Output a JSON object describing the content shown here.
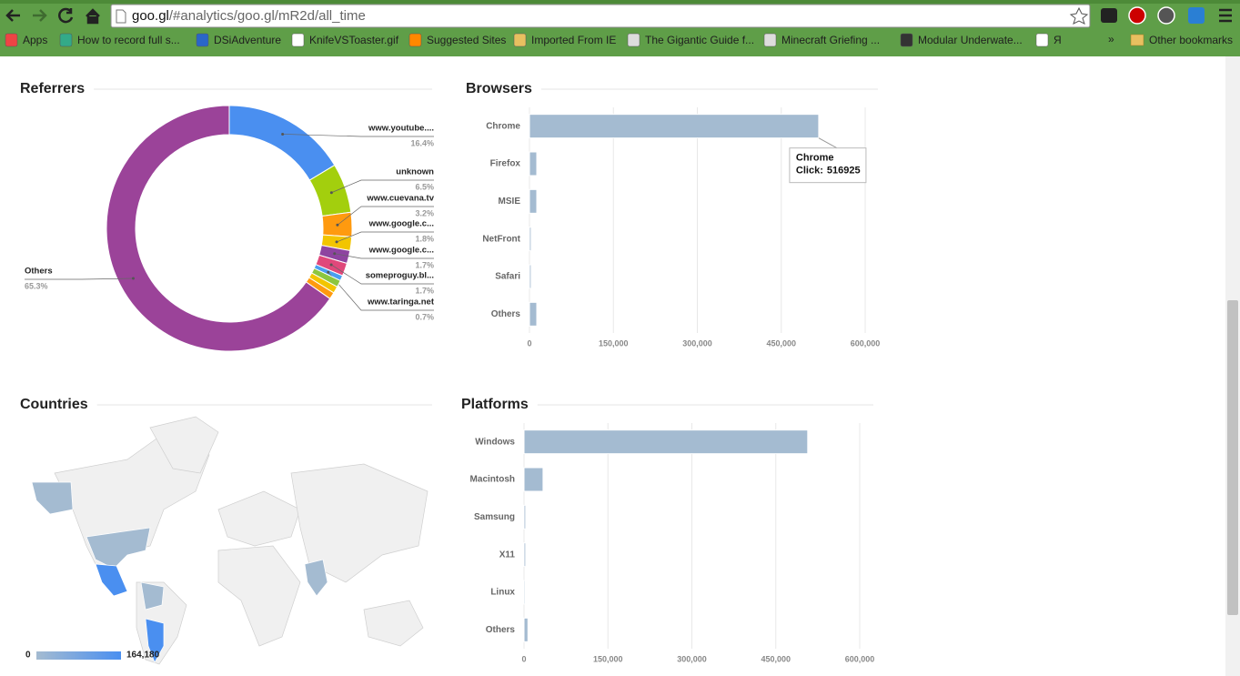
{
  "browser": {
    "url_host": "goo.gl",
    "url_path": "/#analytics/goo.gl/mR2d/all_time",
    "bookmarks": [
      "Apps",
      "How to record full s...",
      "DSiAdventure",
      "KnifeVSToaster.gif",
      "Suggested Sites",
      "Imported From IE",
      "The Gigantic Guide f...",
      "Minecraft Griefing ...",
      "Modular Underwate...",
      "Я"
    ],
    "overflow": "»",
    "other_bookmarks": "Other bookmarks"
  },
  "chart_data": [
    {
      "type": "pie",
      "title": "Referrers",
      "categories": [
        "www.youtube....",
        "unknown",
        "www.cuevana.tv",
        "www.google.c...",
        "www.google.c...",
        "someproguy.bl...",
        "www.taringa.net",
        null,
        null,
        null,
        "Others"
      ],
      "values": [
        16.4,
        6.5,
        3.2,
        1.8,
        1.7,
        1.7,
        0.7,
        0.9,
        0.9,
        0.9,
        65.3
      ],
      "value_labels": [
        "16.4%",
        "6.5%",
        "3.2%",
        "1.8%",
        "1.7%",
        "1.7%",
        "0.7%",
        null,
        null,
        null,
        "65.3%"
      ],
      "colors": [
        "#4a8ff0",
        "#a3cf0d",
        "#ff9a0f",
        "#f2c500",
        "#8e44a0",
        "#e0487b",
        "#4a9ff0",
        "#8cc63e",
        "#f2c500",
        "#ff9a0f",
        "#9b4399"
      ]
    },
    {
      "type": "bar",
      "title": "Browsers",
      "categories": [
        "Chrome",
        "Firefox",
        "MSIE",
        "NetFront",
        "Safari",
        "Others"
      ],
      "values": [
        516925,
        13000,
        13000,
        3000,
        3000,
        13000
      ],
      "color": "#a4bbd1",
      "xlim": [
        0,
        600000
      ],
      "xticks": [
        0,
        {
          "value": 150000,
          "label": "150,000"
        },
        {
          "value": 300000,
          "label": "300,000"
        },
        {
          "value": 450000,
          "label": "450,000"
        },
        {
          "value": 600000,
          "label": "600,000"
        }
      ],
      "grid": true,
      "tooltip": {
        "title": "Chrome",
        "label": "Click:",
        "value": 516925
      }
    },
    {
      "type": "map",
      "title": "Countries",
      "colors": [
        "#a4bbd1",
        "#4a8ff0"
      ],
      "ticks": [
        0,
        {
          "value": 164180,
          "label": "164,180"
        }
      ]
    },
    {
      "type": "bar",
      "title": "Platforms",
      "categories": [
        "Windows",
        "Macintosh",
        "Samsung",
        "X11",
        "Linux",
        "Others"
      ],
      "values": [
        507000,
        34000,
        3000,
        3000,
        2000,
        7000
      ],
      "color": "#a4bbd1",
      "xlim": [
        0,
        600000
      ],
      "xticks": [
        0,
        {
          "value": 150000,
          "label": "150,000"
        },
        {
          "value": 300000,
          "label": "300,000"
        },
        {
          "value": 450000,
          "label": "450,000"
        },
        {
          "value": 600000,
          "label": "600,000"
        }
      ],
      "grid": true
    }
  ]
}
